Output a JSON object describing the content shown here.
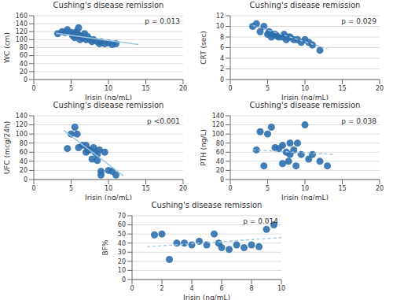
{
  "chart_data": [
    {
      "type": "scatter",
      "title": "Cushing's disease remission",
      "xlabel": "Irisin (ng/mL)",
      "ylabel": "WC (cm)",
      "annotation": "p = 0.013",
      "xlim": [
        0,
        20
      ],
      "ylim": [
        0,
        160
      ],
      "xticks": [
        0,
        5,
        10,
        15,
        20
      ],
      "yticks": [
        0,
        20,
        40,
        60,
        80,
        100,
        120,
        140,
        160
      ],
      "grid": true,
      "series": [
        {
          "type": "scatter",
          "color": "#2e6fad",
          "marker": "circle",
          "x": [
            3.2,
            3.8,
            4.2,
            4.5,
            5.0,
            5.2,
            5.3,
            5.5,
            5.7,
            5.8,
            6.0,
            6.2,
            6.3,
            6.5,
            6.8,
            7.0,
            7.2,
            7.5,
            7.8,
            8.0,
            8.5,
            8.8,
            9.0,
            9.5,
            10.0,
            10.5,
            11.0
          ],
          "values": [
            115,
            120,
            118,
            125,
            118,
            110,
            115,
            105,
            120,
            115,
            130,
            100,
            110,
            105,
            115,
            100,
            108,
            100,
            95,
            100,
            95,
            90,
            95,
            90,
            92,
            88,
            90
          ]
        },
        {
          "type": "line",
          "color": "#9ec8e0",
          "line_style": "solid",
          "x": [
            3.0,
            14.0
          ],
          "values": [
            116,
            88
          ]
        }
      ]
    },
    {
      "type": "scatter",
      "title": "Cushing's disease remission",
      "xlabel": "Irisin (ng/mL)",
      "ylabel": "CRT (sec)",
      "annotation": "p = 0.029",
      "xlim": [
        0,
        20
      ],
      "ylim": [
        0,
        12
      ],
      "xticks": [
        0,
        5,
        10,
        15,
        20
      ],
      "yticks": [
        0,
        2,
        4,
        6,
        8,
        10,
        12
      ],
      "grid": true,
      "series": [
        {
          "type": "scatter",
          "color": "#2e6fad",
          "marker": "circle",
          "x": [
            3.0,
            3.5,
            4.0,
            4.5,
            5.0,
            5.2,
            5.5,
            5.8,
            6.0,
            6.2,
            6.5,
            7.0,
            7.2,
            7.5,
            7.8,
            8.0,
            8.5,
            9.0,
            9.5,
            10.0,
            10.5,
            11.0,
            12.0
          ],
          "values": [
            10.0,
            10.5,
            9.0,
            10.0,
            8.5,
            9.0,
            8.0,
            8.5,
            8.5,
            8.2,
            8.0,
            8.0,
            8.5,
            7.5,
            8.0,
            8.0,
            7.5,
            7.5,
            7.0,
            7.5,
            7.0,
            6.5,
            5.5
          ]
        },
        {
          "type": "line",
          "color": "#9ec8e0",
          "line_style": "dashed",
          "x": [
            3.0,
            13.0
          ],
          "values": [
            10.2,
            5.8
          ]
        }
      ]
    },
    {
      "type": "scatter",
      "title": "Cushing's disease remission",
      "xlabel": "Irisin (ng/mL)",
      "ylabel": "UFC (mcg/24h)",
      "annotation": "p <0.001",
      "xlim": [
        0,
        20
      ],
      "ylim": [
        0,
        140
      ],
      "xticks": [
        0,
        5,
        10,
        15,
        20
      ],
      "yticks": [
        0,
        20,
        40,
        60,
        80,
        100,
        120,
        140
      ],
      "grid": true,
      "series": [
        {
          "type": "scatter",
          "color": "#2e6fad",
          "marker": "circle",
          "x": [
            4.5,
            5.0,
            5.5,
            5.8,
            6.0,
            6.5,
            7.0,
            7.0,
            7.2,
            7.5,
            7.8,
            8.0,
            8.2,
            8.5,
            8.5,
            8.8,
            9.0,
            9.0,
            9.5,
            10.0,
            10.5,
            11.0
          ],
          "values": [
            68,
            100,
            115,
            100,
            70,
            75,
            75,
            60,
            65,
            65,
            45,
            70,
            60,
            42,
            55,
            65,
            18,
            10,
            60,
            20,
            18,
            10
          ]
        },
        {
          "type": "line",
          "color": "#9ec8e0",
          "line_style": "solid",
          "x": [
            4.0,
            12.0
          ],
          "values": [
            108,
            8
          ]
        }
      ]
    },
    {
      "type": "scatter",
      "title": "Cushing's disease remission",
      "xlabel": "Irisin (ng/mL)",
      "ylabel": "PTH (ng/L)",
      "annotation": "p = 0.038",
      "xlim": [
        0,
        20
      ],
      "ylim": [
        0,
        140
      ],
      "xticks": [
        0,
        5,
        10,
        15,
        20
      ],
      "yticks": [
        0,
        20,
        40,
        60,
        80,
        100,
        120,
        140
      ],
      "grid": true,
      "series": [
        {
          "type": "scatter",
          "color": "#2e6fad",
          "marker": "circle",
          "x": [
            3.5,
            4.0,
            4.5,
            5.0,
            5.5,
            6.0,
            6.5,
            7.0,
            7.0,
            7.5,
            7.8,
            8.0,
            8.0,
            8.5,
            8.8,
            9.0,
            9.5,
            10.0,
            10.5,
            11.0,
            12.0,
            13.0
          ],
          "values": [
            65,
            105,
            30,
            100,
            115,
            70,
            68,
            75,
            35,
            60,
            40,
            55,
            80,
            65,
            30,
            80,
            55,
            120,
            45,
            55,
            40,
            30
          ]
        },
        {
          "type": "line",
          "color": "#9ec8e0",
          "line_style": "dashed",
          "x": [
            3.0,
            14.0
          ],
          "values": [
            65,
            55
          ]
        }
      ]
    },
    {
      "type": "scatter",
      "title": "Cushing's disease remission",
      "xlabel": "Irisin (ng/mL)",
      "ylabel": "BF%",
      "annotation": "p = 0.014",
      "xlim": [
        0,
        10
      ],
      "ylim": [
        0,
        70
      ],
      "xticks": [
        0,
        2,
        4,
        6,
        8,
        10
      ],
      "yticks": [
        0,
        10,
        20,
        30,
        40,
        50,
        60,
        70
      ],
      "grid": true,
      "series": [
        {
          "type": "scatter",
          "color": "#2e6fad",
          "marker": "circle",
          "x": [
            1.5,
            2.0,
            2.5,
            3.0,
            3.5,
            4.0,
            4.5,
            5.0,
            5.5,
            5.8,
            6.0,
            6.5,
            7.0,
            7.5,
            8.0,
            8.5,
            9.0,
            9.5
          ],
          "values": [
            49,
            50,
            22,
            40,
            40,
            38,
            42,
            38,
            50,
            40,
            35,
            33,
            38,
            35,
            38,
            36,
            55,
            60
          ]
        },
        {
          "type": "line",
          "color": "#9ec8e0",
          "line_style": "dashed",
          "x": [
            1.0,
            10.0
          ],
          "values": [
            36,
            46
          ]
        }
      ]
    }
  ]
}
